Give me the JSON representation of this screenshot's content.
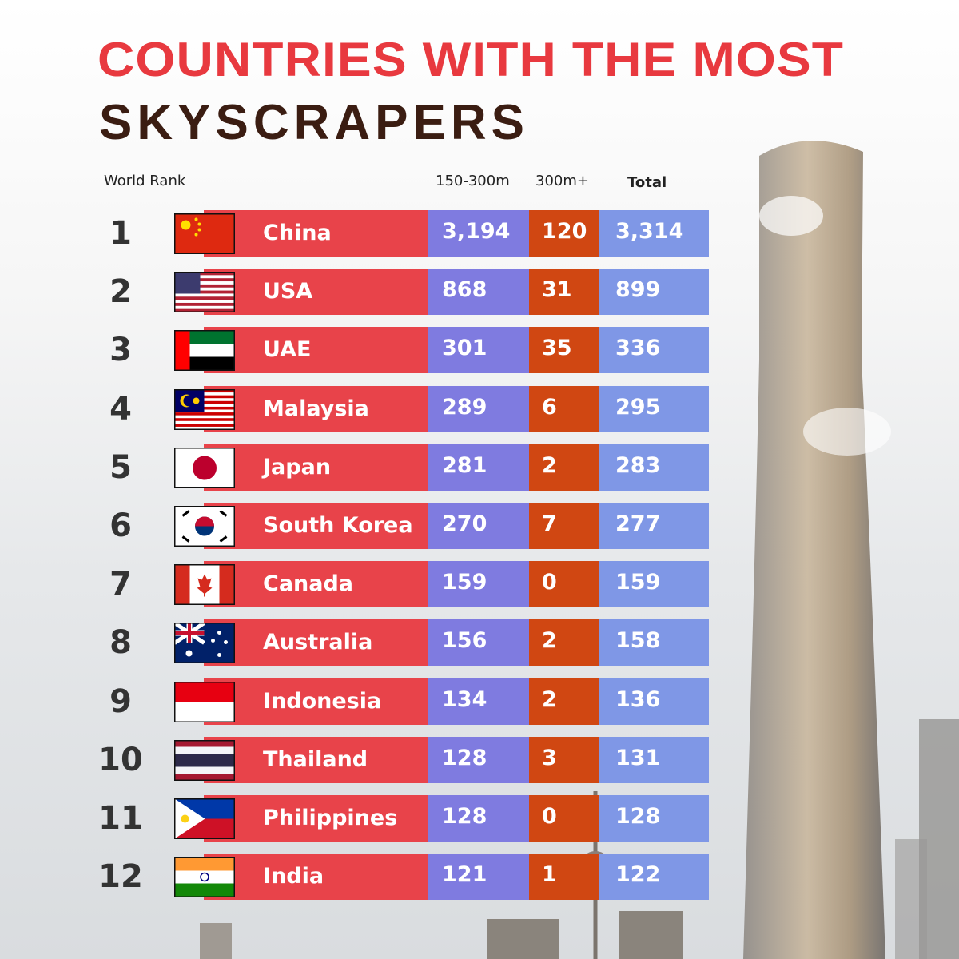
{
  "header": {
    "title_line1": "COUNTRIES WITH THE MOST",
    "title_line2": "SKYSCRAPERS"
  },
  "table": {
    "columns": [
      "World Rank",
      "150-300m",
      "300m+",
      "Total"
    ],
    "rows": [
      [
        "1",
        "China",
        "3,194",
        "120",
        "3,314"
      ],
      [
        "2",
        "USA",
        "868",
        "31",
        "899"
      ],
      [
        "3",
        "UAE",
        "301",
        "35",
        "336"
      ],
      [
        "4",
        "Malaysia",
        "289",
        "6",
        "295"
      ],
      [
        "5",
        "Japan",
        "281",
        "2",
        "283"
      ],
      [
        "6",
        "South Korea",
        "270",
        "7",
        "277"
      ],
      [
        "7",
        "Canada",
        "159",
        "0",
        "159"
      ],
      [
        "8",
        "Australia",
        "156",
        "2",
        "158"
      ],
      [
        "9",
        "Indonesia",
        "134",
        "2",
        "136"
      ],
      [
        "10",
        "Thailand",
        "128",
        "3",
        "131"
      ],
      [
        "11",
        "Philippines",
        "128",
        "0",
        "128"
      ],
      [
        "12",
        "India",
        "121",
        "1",
        "122"
      ]
    ]
  }
}
